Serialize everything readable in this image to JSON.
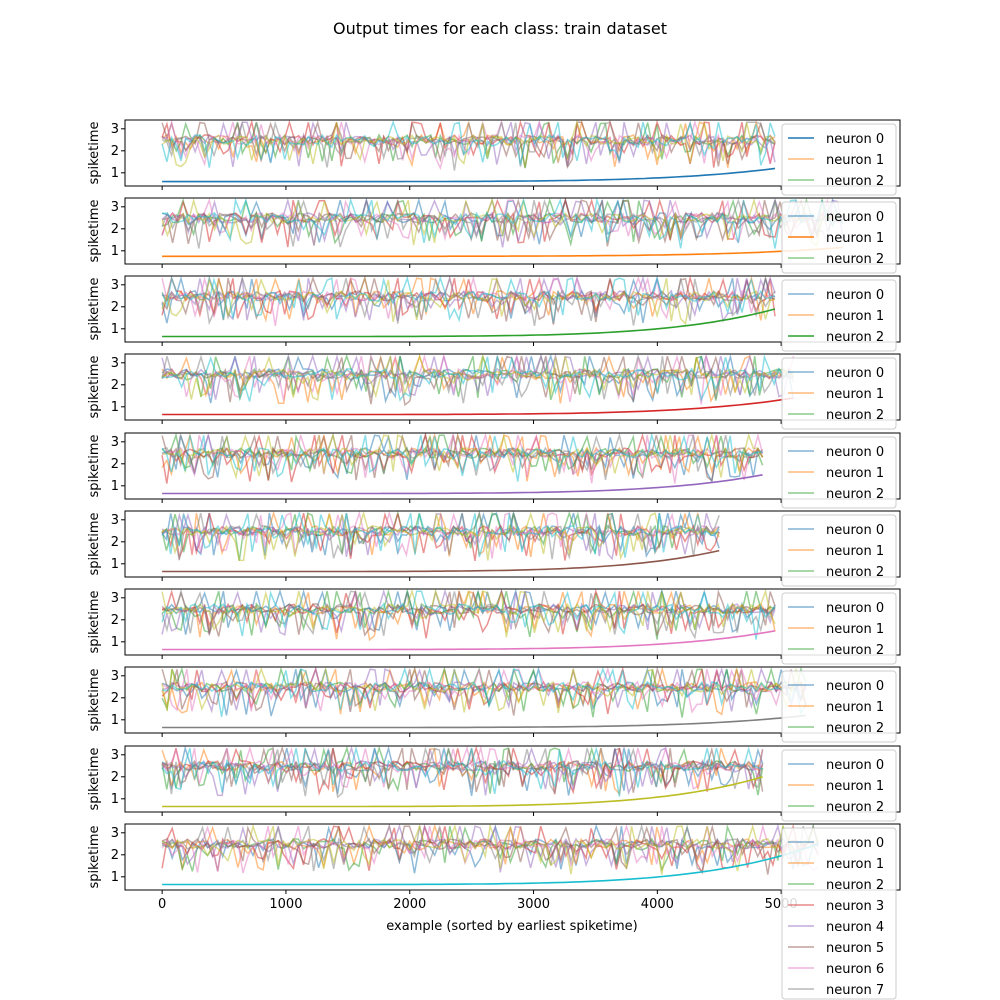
{
  "title": "Output times for each class: train dataset",
  "colors": {
    "neuron_0": "#1f77b4",
    "neuron_1": "#ff7f0e",
    "neuron_2": "#2ca02c",
    "neuron_3": "#d62728",
    "neuron_4": "#9467bd",
    "neuron_5": "#8c564b",
    "neuron_6": "#e377c2",
    "neuron_7": "#7f7f7f",
    "neuron_8": "#bcbd22",
    "neuron_9": "#17becf"
  },
  "chart_data": {
    "type": "line",
    "ylabel": "spiketime",
    "xlabel": "example (sorted by earliest spiketime)",
    "xticks": [
      0,
      1000,
      2000,
      3000,
      4000,
      5000
    ],
    "yticks": [
      1,
      2,
      3
    ],
    "xlim": [
      -300,
      5960
    ],
    "ylim": [
      0.4,
      3.4
    ],
    "legend_labels": [
      "neuron 0",
      "neuron 1",
      "neuron 2",
      "neuron 3",
      "neuron 4",
      "neuron 5",
      "neuron 6",
      "neuron 7"
    ],
    "legend_placement": "right",
    "panels": [
      {
        "class": 0,
        "n_examples": 4950,
        "earliest_start": 0.6,
        "earliest_end": 1.2,
        "extend_right": 5000
      },
      {
        "class": 1,
        "n_examples": 5500,
        "earliest_start": 0.75,
        "earliest_end": 1.15,
        "extend_right": 5550
      },
      {
        "class": 2,
        "n_examples": 4950,
        "earliest_start": 0.65,
        "earliest_end": 1.9,
        "extend_right": 4950
      },
      {
        "class": 3,
        "n_examples": 5100,
        "earliest_start": 0.65,
        "earliest_end": 1.4,
        "extend_right": 5100
      },
      {
        "class": 4,
        "n_examples": 4850,
        "earliest_start": 0.65,
        "earliest_end": 1.5,
        "extend_right": 4850
      },
      {
        "class": 5,
        "n_examples": 4500,
        "earliest_start": 0.65,
        "earliest_end": 1.6,
        "extend_right": 4500
      },
      {
        "class": 6,
        "n_examples": 4950,
        "earliest_start": 0.65,
        "earliest_end": 1.5,
        "extend_right": 4950
      },
      {
        "class": 7,
        "n_examples": 5200,
        "earliest_start": 0.65,
        "earliest_end": 1.2,
        "extend_right": 5200
      },
      {
        "class": 8,
        "n_examples": 4850,
        "earliest_start": 0.65,
        "earliest_end": 2.0,
        "extend_right": 4850
      },
      {
        "class": 9,
        "n_examples": 5300,
        "earliest_start": 0.65,
        "earliest_end": 2.5,
        "extend_right": 5300
      }
    ]
  }
}
